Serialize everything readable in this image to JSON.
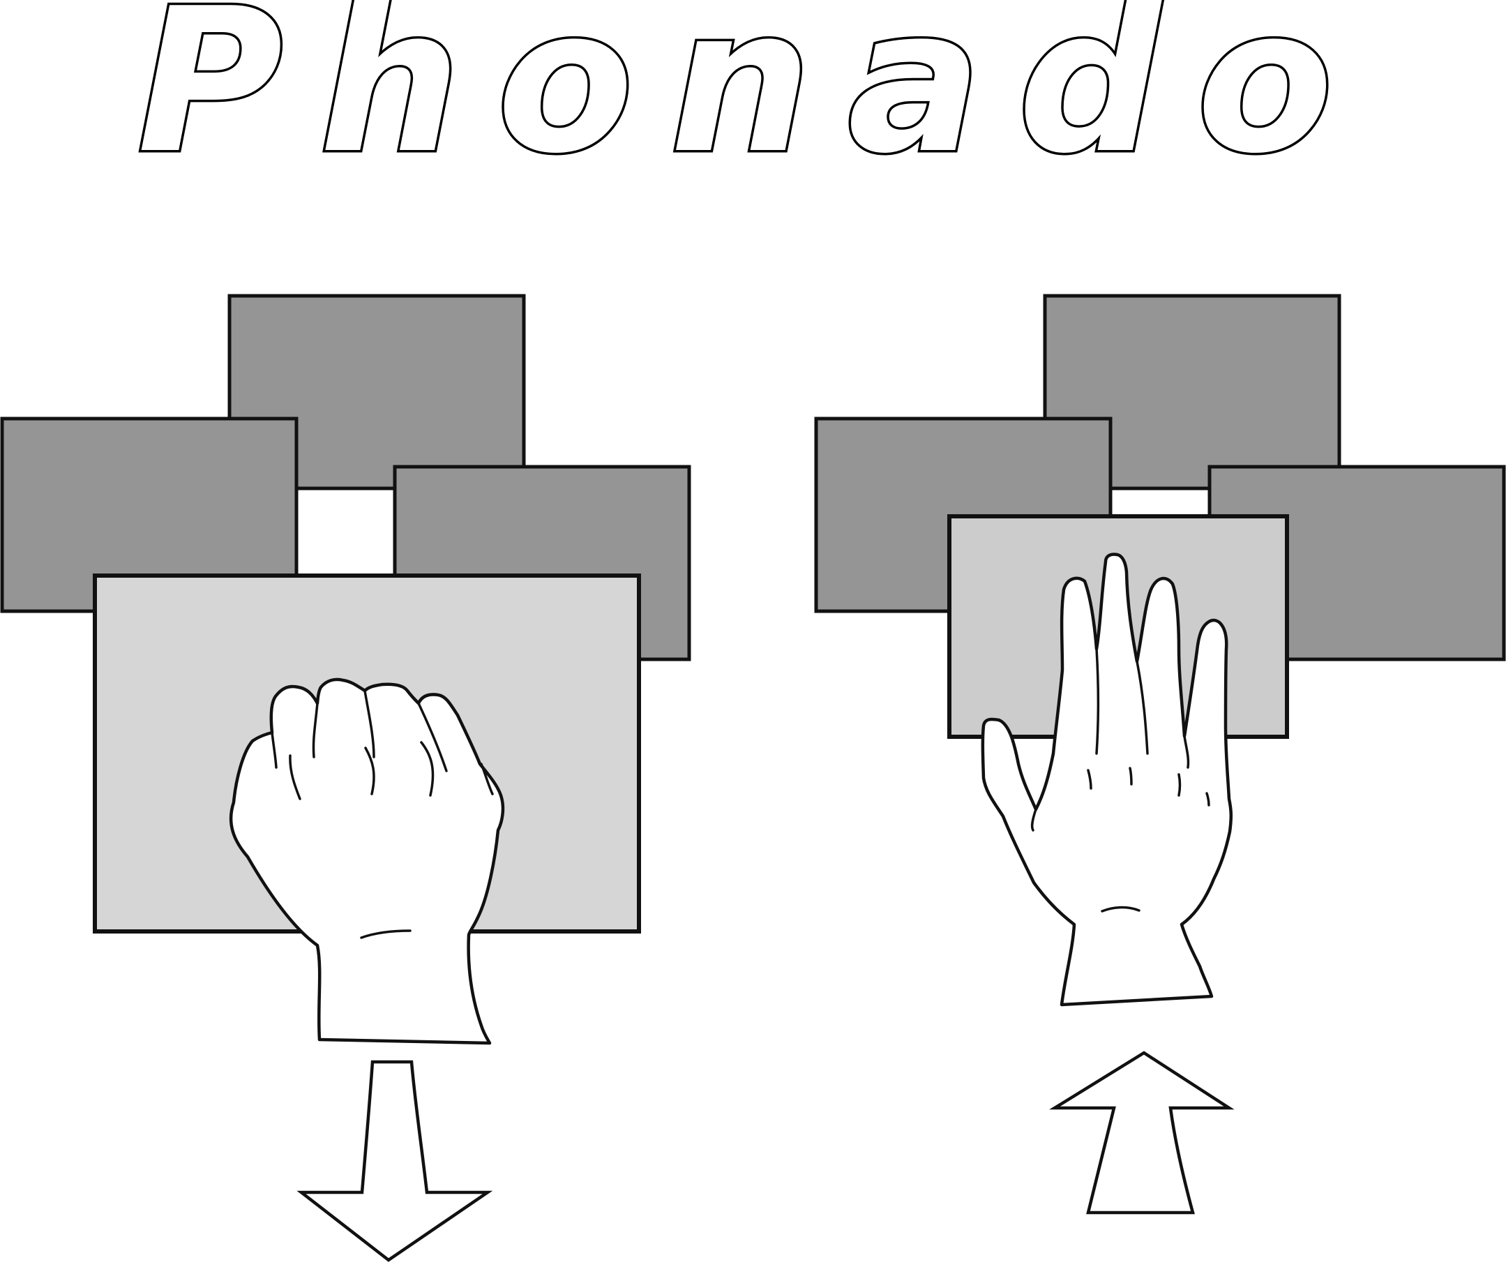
{
  "logo": {
    "text": "Phonado"
  },
  "scenes": [
    {
      "name": "left",
      "gesture": "closed-fist",
      "motion": "down",
      "colors": {
        "back_windows": "#959595",
        "front_window": "#d6d6d6"
      }
    },
    {
      "name": "right",
      "gesture": "open-palm",
      "motion": "up",
      "colors": {
        "back_windows": "#959595",
        "front_window": "#cccccc"
      }
    }
  ],
  "icons": {
    "fist": "fist-hand-icon",
    "palm": "open-palm-hand-icon",
    "arrow_down": "arrow-down-icon",
    "arrow_up": "arrow-up-icon"
  }
}
